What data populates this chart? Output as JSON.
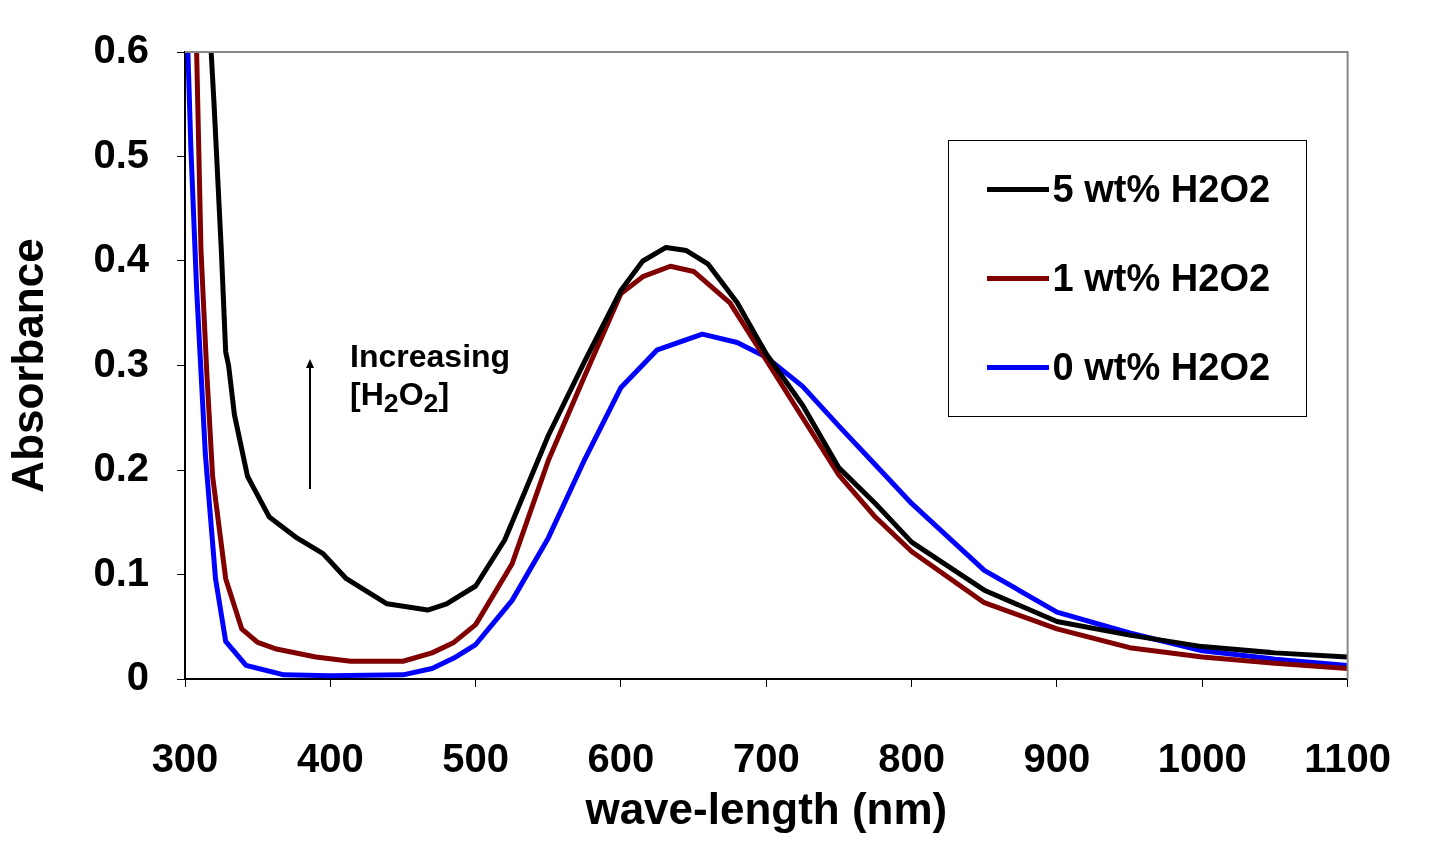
{
  "chart_data": {
    "type": "line",
    "xlabel": "wave-length (nm)",
    "ylabel": "Absorbance",
    "xlim": [
      300,
      1100
    ],
    "xticks": [
      300,
      400,
      500,
      600,
      700,
      800,
      900,
      1000,
      1100
    ],
    "ylim": [
      0,
      0.6
    ],
    "yticks": [
      0,
      0.1,
      0.2,
      0.3,
      0.4,
      0.5,
      0.6
    ],
    "grid": false,
    "legend": "top right",
    "marker": "none",
    "line_style": "solid",
    "annotations": [
      "Increasing [H$_{2}$O$_{2}$]"
    ],
    "series": [
      {
        "name": "5 wt% H2O2",
        "color": "#000000",
        "x": [
          318,
          320,
          325,
          328,
          330,
          334,
          343,
          358,
          377,
          395,
          411,
          439,
          467,
          480,
          500,
          520,
          550,
          575,
          600,
          615,
          631,
          645,
          660,
          680,
          700,
          725,
          750,
          775,
          800,
          850,
          900,
          950,
          1000,
          1050,
          1100
        ],
        "values": [
          0.6,
          0.55,
          0.41,
          0.313,
          0.3,
          0.253,
          0.194,
          0.155,
          0.135,
          0.12,
          0.096,
          0.072,
          0.066,
          0.072,
          0.089,
          0.133,
          0.233,
          0.304,
          0.372,
          0.4,
          0.413,
          0.41,
          0.397,
          0.36,
          0.311,
          0.262,
          0.202,
          0.168,
          0.131,
          0.085,
          0.055,
          0.042,
          0.031,
          0.025,
          0.021
        ]
      },
      {
        "name": "1 wt% H2O2",
        "color": "#800000",
        "x": [
          308,
          311,
          315,
          319,
          328,
          339,
          350,
          362,
          390,
          414,
          450,
          470,
          485,
          500,
          525,
          550,
          575,
          600,
          615,
          634,
          650,
          675,
          700,
          725,
          750,
          775,
          800,
          850,
          900,
          950,
          1000,
          1050,
          1100
        ],
        "values": [
          0.6,
          0.41,
          0.293,
          0.194,
          0.096,
          0.048,
          0.035,
          0.029,
          0.021,
          0.017,
          0.017,
          0.025,
          0.035,
          0.052,
          0.11,
          0.209,
          0.29,
          0.369,
          0.385,
          0.395,
          0.39,
          0.36,
          0.305,
          0.25,
          0.195,
          0.155,
          0.122,
          0.073,
          0.048,
          0.03,
          0.021,
          0.015,
          0.01
        ]
      },
      {
        "name": "0 wt% H2O2",
        "color": "#0000ff",
        "x": [
          302,
          304,
          308,
          314,
          321,
          328,
          342,
          368,
          400,
          450,
          470,
          485,
          500,
          525,
          550,
          575,
          600,
          625,
          656,
          680,
          700,
          725,
          750,
          775,
          800,
          850,
          900,
          950,
          1000,
          1050,
          1100
        ],
        "values": [
          0.6,
          0.51,
          0.373,
          0.215,
          0.096,
          0.036,
          0.013,
          0.004,
          0.003,
          0.004,
          0.01,
          0.02,
          0.033,
          0.075,
          0.135,
          0.21,
          0.279,
          0.315,
          0.33,
          0.322,
          0.308,
          0.28,
          0.242,
          0.205,
          0.168,
          0.104,
          0.064,
          0.044,
          0.027,
          0.019,
          0.013
        ]
      }
    ]
  }
}
